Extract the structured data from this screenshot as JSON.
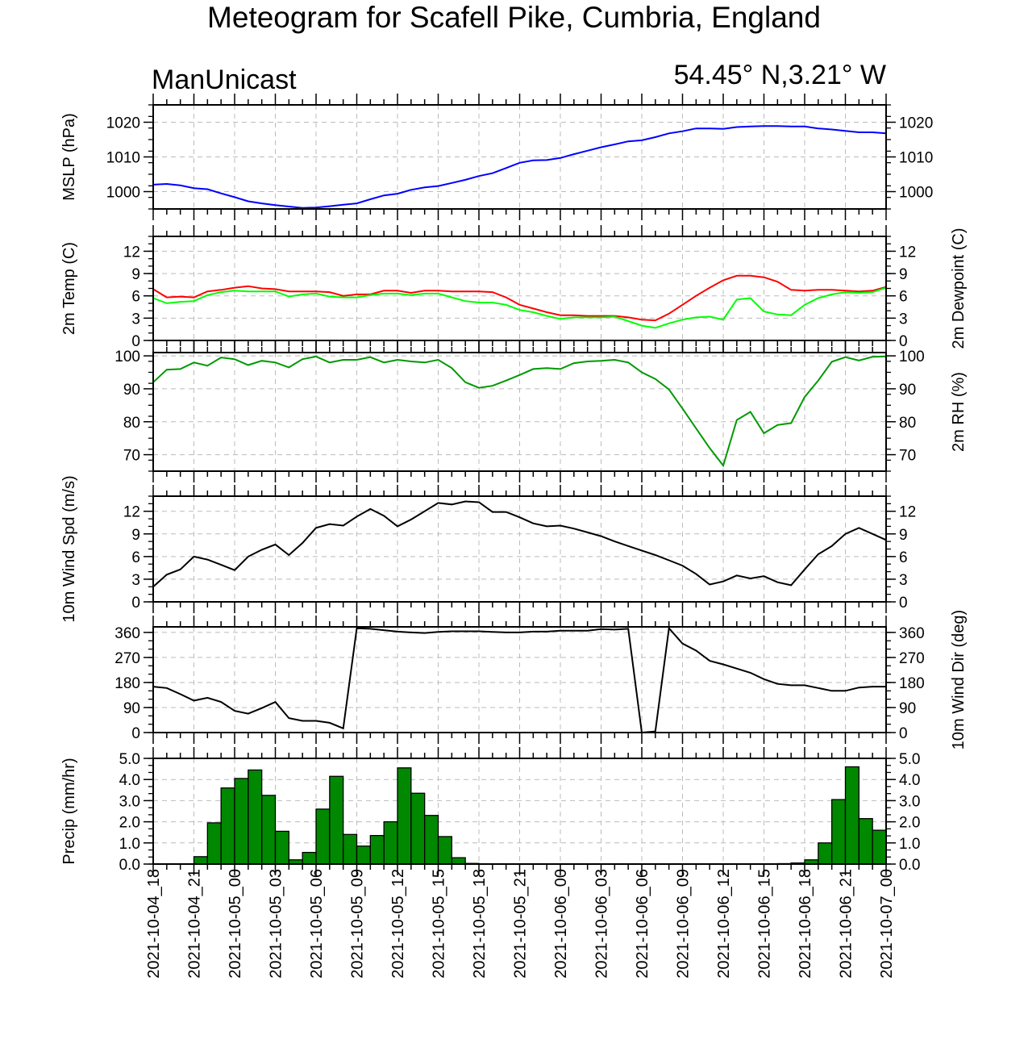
{
  "title": "Meteogram for Scafell Pike, Cumbria, England",
  "model": "ManUnicast",
  "location": "54.45° N,3.21° W",
  "time_labels": [
    "2021-10-04_18",
    "2021-10-04_21",
    "2021-10-05_00",
    "2021-10-05_03",
    "2021-10-05_06",
    "2021-10-05_09",
    "2021-10-05_12",
    "2021-10-05_15",
    "2021-10-05_18",
    "2021-10-05_21",
    "2021-10-06_00",
    "2021-10-06_03",
    "2021-10-06_06",
    "2021-10-06_09",
    "2021-10-06_12",
    "2021-10-06_15",
    "2021-10-06_18",
    "2021-10-06_21",
    "2021-10-07_00"
  ],
  "chart_data": [
    {
      "type": "line",
      "x_unit": "hours since 2021-10-04_18",
      "ylabel_left": "MSLP (hPa)",
      "ylabel_right": "",
      "ylim": [
        995,
        1025
      ],
      "yticks": [
        1000,
        1010,
        1020
      ],
      "tick_labels_right": true,
      "series": [
        {
          "color": "#0000ff",
          "x": [
            0,
            1,
            2,
            3,
            4,
            5,
            6,
            7,
            8,
            9,
            10,
            11,
            12,
            13,
            14,
            15,
            16,
            17,
            18,
            19,
            20,
            21,
            22,
            23,
            24,
            25,
            26,
            27,
            28,
            29,
            30,
            31,
            32,
            33,
            34,
            35,
            36,
            37,
            38,
            39,
            40,
            41,
            42,
            43,
            44,
            45,
            46,
            47,
            48,
            49,
            50,
            51,
            52,
            53,
            54
          ],
          "values": [
            1002,
            1002.2,
            1001.8,
            1001,
            1000.7,
            999.5,
            998.4,
            997.2,
            996.6,
            996.1,
            995.7,
            995.3,
            995.4,
            995.8,
            996.2,
            996.6,
            997.8,
            998.9,
            999.4,
            1000.5,
            1001.2,
            1001.6,
            1002.5,
            1003.4,
            1004.5,
            1005.3,
            1006.8,
            1008.3,
            1009,
            1009.1,
            1009.7,
            1010.8,
            1011.8,
            1012.8,
            1013.6,
            1014.5,
            1014.8,
            1015.7,
            1016.8,
            1017.4,
            1018.2,
            1018.2,
            1018.1,
            1018.6,
            1018.8,
            1018.9,
            1018.9,
            1018.8,
            1018.8,
            1018.2,
            1017.9,
            1017.5,
            1017.1,
            1017.1,
            1016.8
          ]
        }
      ]
    },
    {
      "type": "line",
      "x_unit": "hours since 2021-10-04_18",
      "ylabel_left": "2m Temp (C)",
      "ylabel_right": "2m Dewpoint (C)",
      "ylim": [
        0,
        14
      ],
      "yticks": [
        0,
        3,
        6,
        9,
        12
      ],
      "tick_labels_right": true,
      "series": [
        {
          "color": "#ff0000",
          "x": [
            0,
            1,
            2,
            3,
            4,
            5,
            6,
            7,
            8,
            9,
            10,
            11,
            12,
            13,
            14,
            15,
            16,
            17,
            18,
            19,
            20,
            21,
            22,
            23,
            24,
            25,
            26,
            27,
            28,
            29,
            30,
            31,
            32,
            33,
            34,
            35,
            36,
            37,
            38,
            39,
            40,
            41,
            42,
            43,
            44,
            45,
            46,
            47,
            48,
            49,
            50,
            51,
            52,
            53,
            54
          ],
          "values": [
            6.9,
            5.8,
            5.9,
            5.8,
            6.6,
            6.8,
            7.1,
            7.3,
            7.0,
            6.9,
            6.6,
            6.6,
            6.6,
            6.5,
            6.0,
            6.2,
            6.2,
            6.7,
            6.7,
            6.4,
            6.7,
            6.7,
            6.6,
            6.6,
            6.6,
            6.5,
            5.8,
            4.8,
            4.3,
            3.8,
            3.4,
            3.4,
            3.3,
            3.3,
            3.3,
            3.1,
            2.8,
            2.7,
            3.6,
            4.8,
            6.0,
            7.1,
            8.1,
            8.7,
            8.7,
            8.5,
            7.9,
            6.8,
            6.7,
            6.8,
            6.8,
            6.7,
            6.6,
            6.7,
            7.2
          ]
        },
        {
          "color": "#00ff00",
          "x": [
            0,
            1,
            2,
            3,
            4,
            5,
            6,
            7,
            8,
            9,
            10,
            11,
            12,
            13,
            14,
            15,
            16,
            17,
            18,
            19,
            20,
            21,
            22,
            23,
            24,
            25,
            26,
            27,
            28,
            29,
            30,
            31,
            32,
            33,
            34,
            35,
            36,
            37,
            38,
            39,
            40,
            41,
            42,
            43,
            44,
            45,
            46,
            47,
            48,
            49,
            50,
            51,
            52,
            53,
            54
          ],
          "values": [
            5.7,
            5.0,
            5.2,
            5.3,
            6.1,
            6.5,
            6.7,
            6.6,
            6.6,
            6.6,
            5.9,
            6.2,
            6.3,
            5.9,
            5.8,
            5.8,
            6.1,
            6.3,
            6.3,
            6.1,
            6.3,
            6.3,
            5.8,
            5.3,
            5.1,
            5.1,
            4.8,
            4.1,
            3.8,
            3.3,
            2.9,
            3.1,
            3.1,
            3.1,
            3.2,
            2.6,
            2.0,
            1.7,
            2.3,
            2.8,
            3.1,
            3.2,
            2.8,
            5.5,
            5.7,
            3.9,
            3.5,
            3.4,
            4.8,
            5.7,
            6.2,
            6.5,
            6.4,
            6.5,
            7.1
          ]
        }
      ]
    },
    {
      "type": "line",
      "x_unit": "hours since 2021-10-04_18",
      "ylabel_left": "",
      "ylabel_right": "2m RH (%)",
      "ylim": [
        65,
        101
      ],
      "yticks": [
        70,
        80,
        90,
        100
      ],
      "tick_labels_right": true,
      "series": [
        {
          "color": "#009900",
          "x": [
            0,
            1,
            2,
            3,
            4,
            5,
            6,
            7,
            8,
            9,
            10,
            11,
            12,
            13,
            14,
            15,
            16,
            17,
            18,
            19,
            20,
            21,
            22,
            23,
            24,
            25,
            26,
            27,
            28,
            29,
            30,
            31,
            32,
            33,
            34,
            35,
            36,
            37,
            38,
            39,
            40,
            41,
            42,
            43,
            44,
            45,
            46,
            47,
            48,
            49,
            50,
            51,
            52,
            53,
            54
          ],
          "values": [
            92,
            95.8,
            96,
            98,
            97,
            99.5,
            99,
            97.2,
            98.5,
            98,
            96.5,
            99,
            99.8,
            98,
            98.8,
            98.8,
            99.6,
            98,
            98.8,
            98.3,
            98,
            98.8,
            96.3,
            92,
            90.3,
            90.9,
            92.5,
            94.2,
            96,
            96.3,
            96,
            97.8,
            98.3,
            98.5,
            98.8,
            98,
            95,
            93,
            89.8,
            84,
            78,
            72,
            66.7,
            80.5,
            83,
            76.5,
            79,
            79.6,
            87.5,
            92.5,
            98.2,
            99.6,
            98.6,
            99.7,
            99.8
          ]
        }
      ]
    },
    {
      "type": "line",
      "x_unit": "hours since 2021-10-04_18",
      "ylabel_left": "10m Wind Spd (m/s)",
      "ylabel_right": "",
      "ylim": [
        0,
        14
      ],
      "yticks": [
        0,
        3,
        6,
        9,
        12
      ],
      "tick_labels_right": true,
      "series": [
        {
          "color": "#000000",
          "x": [
            0,
            1,
            2,
            3,
            4,
            5,
            6,
            7,
            8,
            9,
            10,
            11,
            12,
            13,
            14,
            15,
            16,
            17,
            18,
            19,
            20,
            21,
            22,
            23,
            24,
            25,
            26,
            27,
            28,
            29,
            30,
            31,
            32,
            33,
            34,
            35,
            36,
            37,
            38,
            39,
            40,
            41,
            42,
            43,
            44,
            45,
            46,
            47,
            48,
            49,
            50,
            51,
            52,
            53,
            54
          ],
          "values": [
            2.0,
            3.6,
            4.3,
            6.0,
            5.6,
            4.9,
            4.2,
            6.0,
            6.9,
            7.6,
            6.2,
            7.8,
            9.8,
            10.3,
            10.1,
            11.3,
            12.3,
            11.4,
            10.0,
            10.9,
            12.0,
            13.1,
            12.9,
            13.3,
            13.2,
            11.9,
            11.9,
            11.2,
            10.4,
            10.0,
            10.1,
            9.7,
            9.2,
            8.7,
            8.0,
            7.4,
            6.8,
            6.2,
            5.5,
            4.8,
            3.7,
            2.3,
            2.7,
            3.5,
            3.1,
            3.4,
            2.6,
            2.2,
            4.3,
            6.3,
            7.4,
            9.0,
            9.8,
            9.0,
            8.2
          ]
        }
      ]
    },
    {
      "type": "line",
      "x_unit": "hours since 2021-10-04_18",
      "ylabel_left": "",
      "ylabel_right": "10m Wind Dir (deg)",
      "ylim": [
        0,
        380
      ],
      "yticks": [
        0,
        90,
        180,
        270,
        360
      ],
      "tick_labels_right": true,
      "series": [
        {
          "color": "#000000",
          "x": [
            0,
            1,
            2,
            3,
            4,
            5,
            6,
            7,
            8,
            9,
            10,
            11,
            12,
            13,
            14,
            15,
            16,
            17,
            18,
            19,
            20,
            21,
            22,
            23,
            24,
            25,
            26,
            27,
            28,
            29,
            30,
            31,
            32,
            33,
            34,
            35,
            36,
            37,
            38,
            39,
            40,
            41,
            42,
            43,
            44,
            45,
            46,
            47,
            48,
            49,
            50,
            51,
            52,
            53,
            54
          ],
          "values": [
            165,
            160,
            138,
            115,
            125,
            110,
            78,
            68,
            88,
            110,
            52,
            42,
            42,
            35,
            15,
            375,
            373,
            368,
            363,
            360,
            358,
            362,
            364,
            364,
            364,
            362,
            360,
            360,
            363,
            363,
            366,
            366,
            366,
            372,
            370,
            373,
            0,
            4,
            375,
            320,
            295,
            258,
            245,
            230,
            215,
            192,
            175,
            170,
            170,
            160,
            150,
            150,
            162,
            165,
            165
          ]
        }
      ]
    },
    {
      "type": "bar",
      "x_unit": "hours since 2021-10-04_18",
      "ylabel_left": "Precip (mm/hr)",
      "ylabel_right": "",
      "ylim": [
        0,
        5
      ],
      "yticks": [
        0,
        1,
        2,
        3,
        4,
        5
      ],
      "ytick_labels": [
        "0.0",
        "1.0",
        "2.0",
        "3.0",
        "4.0",
        "5.0"
      ],
      "tick_labels_right": true,
      "bar_color": "#008800",
      "x": [
        0,
        1,
        2,
        3,
        4,
        5,
        6,
        7,
        8,
        9,
        10,
        11,
        12,
        13,
        14,
        15,
        16,
        17,
        18,
        19,
        20,
        21,
        22,
        23,
        24,
        25,
        26,
        27,
        28,
        29,
        30,
        31,
        32,
        33,
        34,
        35,
        36,
        37,
        38,
        39,
        40,
        41,
        42,
        43,
        44,
        45,
        46,
        47,
        48,
        49,
        50,
        51,
        52,
        53
      ],
      "values": [
        0,
        0,
        0,
        0.35,
        1.95,
        3.6,
        4.05,
        4.45,
        3.25,
        1.55,
        0.2,
        0.55,
        2.6,
        4.15,
        1.4,
        0.85,
        1.35,
        2.0,
        4.55,
        3.35,
        2.3,
        1.3,
        0.3,
        0.03,
        0,
        0,
        0,
        0,
        0,
        0,
        0,
        0,
        0,
        0,
        0,
        0,
        0,
        0,
        0,
        0,
        0,
        0,
        0,
        0,
        0,
        0,
        0.02,
        0.05,
        0.2,
        1.0,
        3.05,
        4.6,
        2.15,
        1.6
      ]
    }
  ]
}
